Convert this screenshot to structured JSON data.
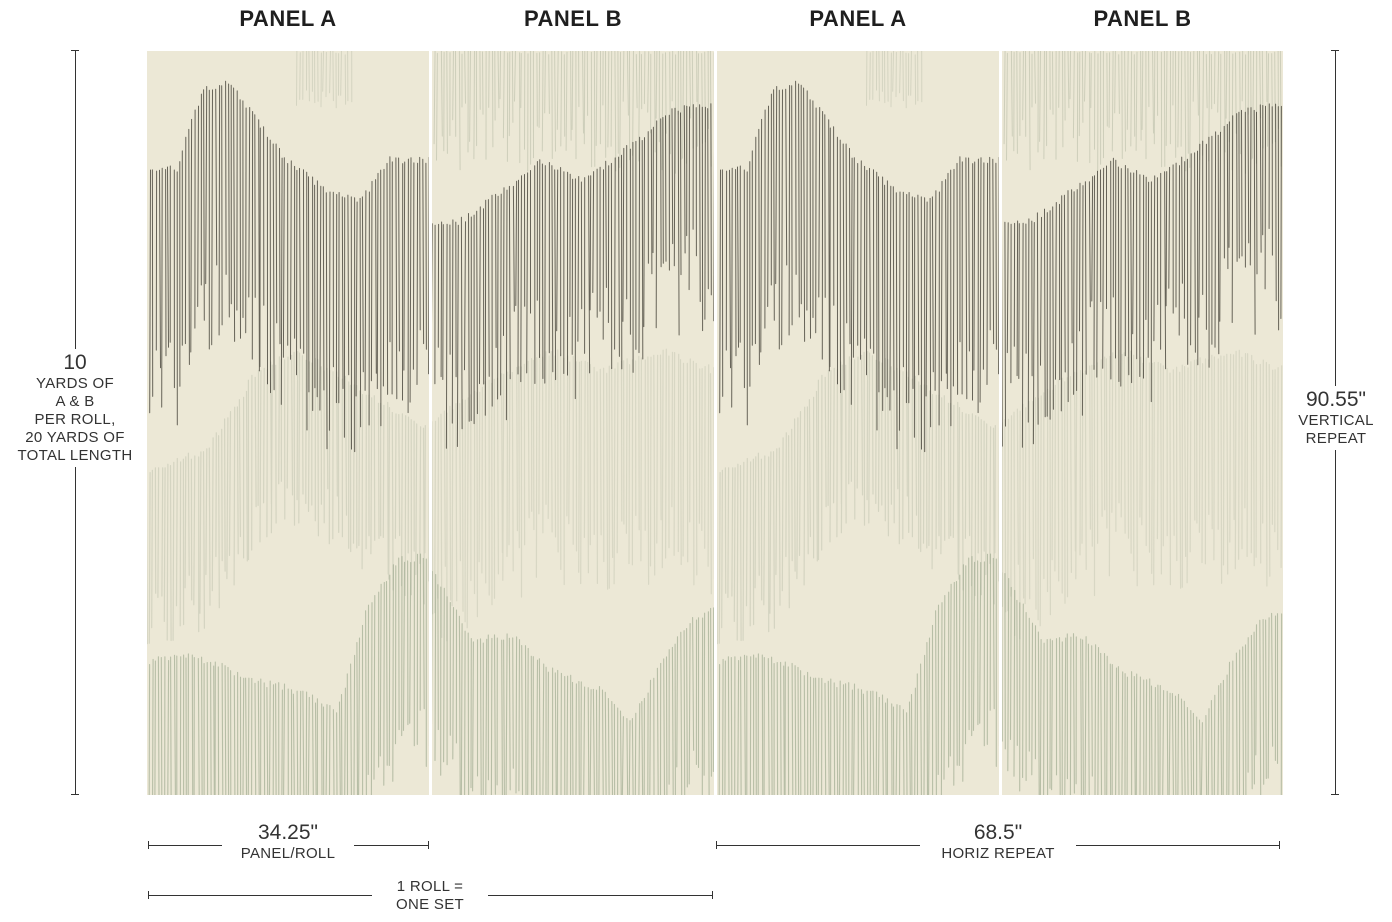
{
  "panels": [
    {
      "label": "PANEL A",
      "variant": "a"
    },
    {
      "label": "PANEL B",
      "variant": "b"
    },
    {
      "label": "PANEL A",
      "variant": "a"
    },
    {
      "label": "PANEL B",
      "variant": "b"
    }
  ],
  "colors": {
    "paper": "#ece8d6",
    "ink_dark": "#3a372e",
    "ink_mid": "#6b6f5c",
    "ink_light": "#a8b09a",
    "sage": "#8c9a80",
    "divider": "#ffffff"
  },
  "dimensions": {
    "length": {
      "value": "10",
      "lines": [
        "YARDS OF",
        "A & B",
        "PER ROLL,",
        "20 YARDS OF",
        "TOTAL LENGTH"
      ]
    },
    "vertical_repeat": {
      "value": "90.55\"",
      "lines": [
        "VERTICAL",
        "REPEAT"
      ]
    },
    "panel_width": {
      "value": "34.25\"",
      "label": "PANEL/ROLL"
    },
    "horiz_repeat": {
      "value": "68.5\"",
      "label": "HORIZ REPEAT"
    },
    "roll_set": {
      "lines": [
        "1 ROLL =",
        "ONE SET"
      ]
    }
  }
}
